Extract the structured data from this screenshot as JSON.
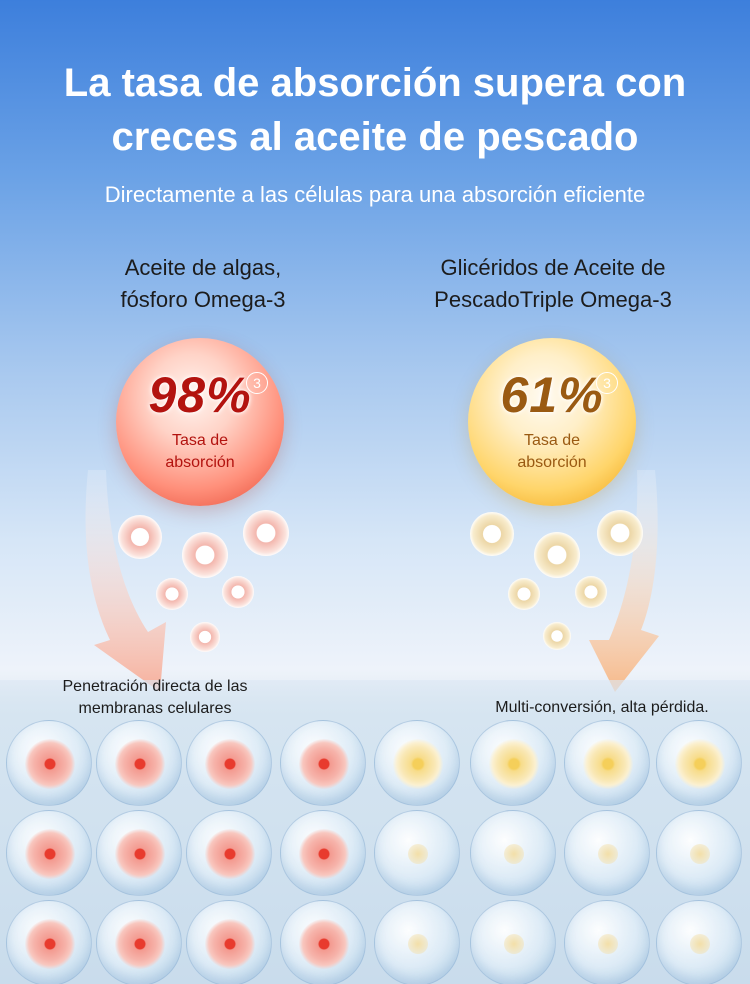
{
  "title": {
    "line1": "La tasa de absorción supera con",
    "line2": "creces al aceite de pescado"
  },
  "subtitle": "Directamente a las células para una absorción eficiente",
  "left": {
    "label_line1": "Aceite de algas,",
    "label_line2": "fósforo Omega-3",
    "rate": "98%",
    "footnote": "3",
    "rate_label_line1": "Tasa de",
    "rate_label_line2": "absorción",
    "caption_line1": "Penetración directa de las",
    "caption_line2": "membranas celulares",
    "color": "#b3130f"
  },
  "right": {
    "label_line1": "Glicéridos de Aceite de",
    "label_line2": "PescadoTriple Omega-3",
    "rate": "61%",
    "footnote": "3",
    "rate_label_line1": "Tasa de",
    "rate_label_line2": "absorción",
    "caption_line1": "Multi-conversión, alta pérdida.",
    "color": "#9a5a12"
  }
}
